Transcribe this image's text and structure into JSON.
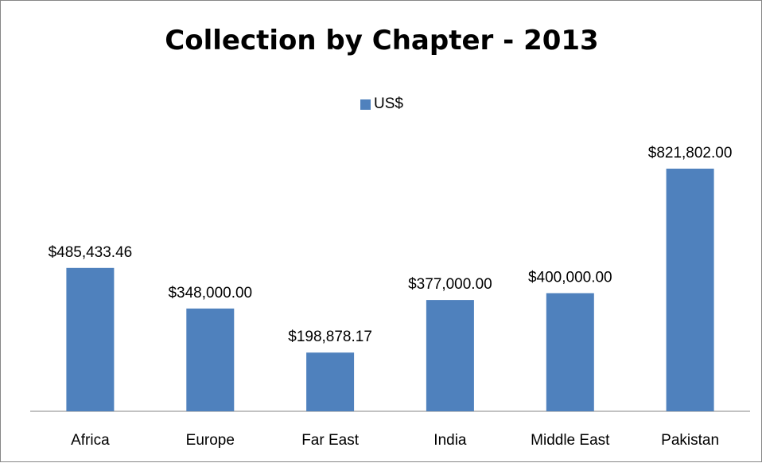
{
  "chart_data": {
    "type": "bar",
    "title": "Collection by Chapter - 2013",
    "categories": [
      "Africa",
      "Europe",
      "Far East",
      "India",
      "Middle East",
      "Pakistan"
    ],
    "series": [
      {
        "name": "US$",
        "values": [
          485433.46,
          348000.0,
          198878.17,
          377000.0,
          400000.0,
          821802.0
        ],
        "data_labels": [
          "$485,433.46",
          "$348,000.00",
          "$198,878.17",
          "$377,000.00",
          "$400,000.00",
          "$821,802.00"
        ],
        "color": "#4f81bd"
      }
    ],
    "ylim": [
      0,
      1000000
    ],
    "grid": false,
    "legend_position": "top",
    "axis_color": "#868686"
  }
}
